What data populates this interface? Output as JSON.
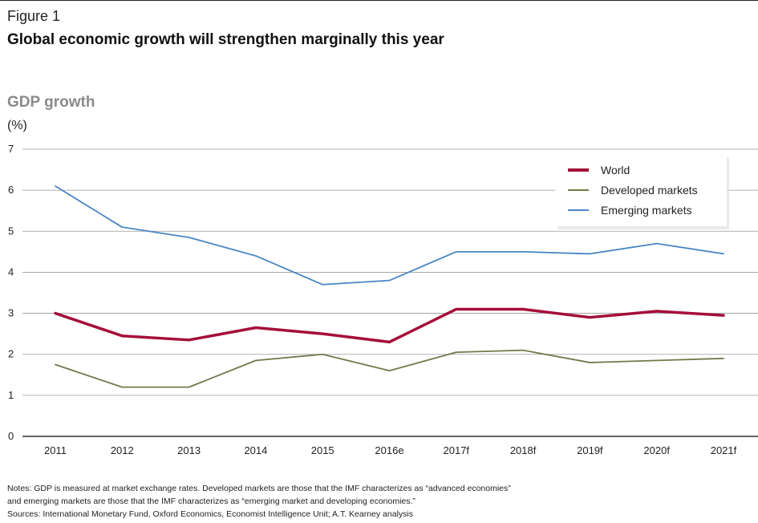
{
  "figure": {
    "label": "Figure 1",
    "title": "Global economic growth will strengthen marginally this year"
  },
  "notes": {
    "line1": "Notes: GDP is measured at market exchange rates. Developed markets are those that the IMF characterizes as “advanced economies”",
    "line2": "and emerging markets are those that the IMF characterizes as “emerging market and developing economies.”",
    "sources": "Sources: International Monetary Fund, Oxford Economics, Economist Intelligence Unit; A.T. Kearney analysis"
  },
  "colors": {
    "world": "#a50f3a",
    "developed": "#6e7b4a",
    "emerging": "#4a86c5",
    "grid": "#9a9a9a"
  },
  "chart_data": {
    "type": "line",
    "title": "GDP growth",
    "ylabel": "(%)",
    "xlabel": "",
    "ylim": [
      0,
      7
    ],
    "yticks": [
      0,
      1,
      2,
      3,
      4,
      5,
      6,
      7
    ],
    "grid": true,
    "legend_position": "top-right",
    "categories": [
      "2011",
      "2012",
      "2013",
      "2014",
      "2015",
      "2016e",
      "2017f",
      "2018f",
      "2019f",
      "2020f",
      "2021f"
    ],
    "series": [
      {
        "name": "World",
        "color_key": "world",
        "values": [
          3.0,
          2.45,
          2.35,
          2.65,
          2.5,
          2.3,
          3.1,
          3.1,
          2.9,
          3.05,
          2.95
        ]
      },
      {
        "name": "Developed markets",
        "color_key": "developed",
        "values": [
          1.75,
          1.2,
          1.2,
          1.85,
          2.0,
          1.6,
          2.05,
          2.1,
          1.8,
          1.85,
          1.9
        ]
      },
      {
        "name": "Emerging markets",
        "color_key": "emerging",
        "values": [
          6.1,
          5.1,
          4.85,
          4.4,
          3.7,
          3.8,
          4.5,
          4.5,
          4.45,
          4.7,
          4.45
        ]
      }
    ]
  }
}
